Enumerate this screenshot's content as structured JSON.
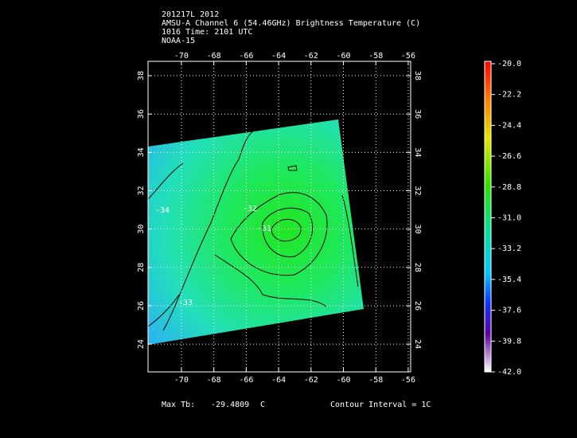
{
  "title_lines": [
    "201217L 2012",
    "AMSU-A Channel 6 (54.46GHz) Brightness Temperature (C)",
    "1016 Time: 2101 UTC",
    "NOAA-15"
  ],
  "map": {
    "xlim": [
      -72.06,
      -55.85
    ],
    "ylim": [
      22.55,
      38.75
    ],
    "xticks": [
      -70,
      -68,
      -66,
      -64,
      -62,
      -60,
      -58,
      -56
    ],
    "yticks": [
      24,
      26,
      28,
      30,
      32,
      34,
      36,
      38
    ],
    "grid": true,
    "contour_labels": [
      "-34",
      "-32",
      "-31",
      "-33"
    ]
  },
  "colorbar": {
    "clim": [
      -42,
      -20
    ],
    "ticks": [
      {
        "value": -20,
        "label": "-20.0"
      },
      {
        "value": -22.2,
        "label": "-22.2"
      },
      {
        "value": -24.4,
        "label": "-24.4"
      },
      {
        "value": -26.6,
        "label": "-26.6"
      },
      {
        "value": -28.8,
        "label": "-28.8"
      },
      {
        "value": -31,
        "label": "-31.0"
      },
      {
        "value": -33.2,
        "label": "-33.2"
      },
      {
        "value": -35.4,
        "label": "-35.4"
      },
      {
        "value": -37.6,
        "label": "-37.6"
      },
      {
        "value": -39.8,
        "label": "-39.8"
      },
      {
        "value": -42,
        "label": "-42.0"
      }
    ]
  },
  "footer": {
    "max_label": "Max Tb:",
    "max_value": "-29.4809",
    "max_unit": "C",
    "contour_interval": "Contour Interval = 1C"
  }
}
